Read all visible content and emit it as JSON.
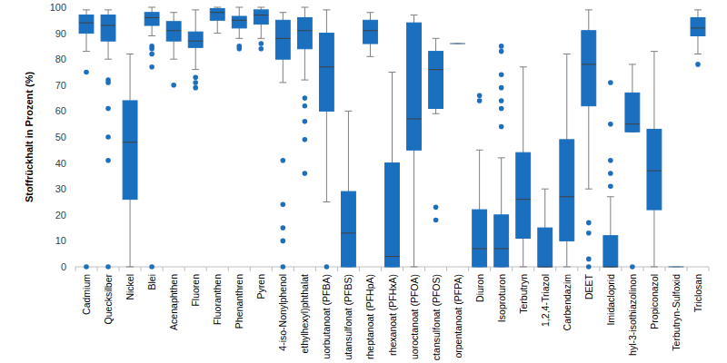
{
  "chart_data": {
    "type": "box",
    "ylabel": "Stoffrückhalt in Prozent (%)",
    "ylim": [
      0,
      100
    ],
    "yticks": [
      0,
      10,
      20,
      30,
      40,
      50,
      60,
      70,
      80,
      90,
      100
    ],
    "grid": false,
    "color": "#1a6fbf",
    "categories": [
      "Cadmium",
      "Quecksilber",
      "Nickel",
      "Blei",
      "Acenaphthen",
      "Fluoren",
      "Fluoranthen",
      "Phenanthren",
      "Pyren",
      "4-iso-Nonylphenol",
      "ethylhexyl)phthalat",
      "uorbutanoat (PFBA)",
      "utansulfonat (PFBS)",
      "rheptanoat (PFHpA)",
      "rhexanoat (PFHxA)",
      "uoroctanoat (PFOA)",
      "ctansulfonat (PFOS)",
      "orpentanoat (PFPA)",
      "Diuron",
      "Isoproturon",
      "Terbutryn",
      "1,2,4-Triazol",
      "Carbendazim",
      "DEET",
      "Imidacloprid",
      "hyl-3-isothiazolinon",
      "Propiconazol",
      "Terbutryn-Sulfoxid",
      "Triclosan"
    ],
    "whisker_low": [
      83,
      80,
      0,
      89,
      80,
      76,
      90,
      88,
      88,
      71,
      72,
      25,
      0,
      81,
      0,
      0,
      59,
      86,
      0,
      0,
      0,
      0,
      0,
      30,
      0,
      52,
      0,
      0,
      82
    ],
    "q1": [
      90,
      87,
      26,
      93,
      87,
      84.5,
      95,
      92,
      93.5,
      80,
      84,
      60,
      0,
      86,
      0,
      45,
      61,
      86,
      0,
      0,
      11,
      0,
      10,
      62,
      0,
      52,
      22,
      0,
      89
    ],
    "median": [
      94,
      93,
      48,
      96,
      91,
      87,
      98,
      95,
      97,
      88,
      91,
      77,
      13,
      91,
      4,
      57,
      76,
      86,
      7,
      7,
      26,
      0,
      27,
      78,
      0,
      55,
      37,
      0,
      92
    ],
    "q3": [
      97,
      97,
      64,
      98,
      94.5,
      90.5,
      99.5,
      96.5,
      99,
      95,
      96,
      90,
      29,
      95,
      40,
      94,
      83,
      86,
      22,
      20,
      44,
      15,
      49,
      91,
      12,
      67,
      53,
      0,
      96
    ],
    "whisker_high": [
      99,
      99,
      82,
      100,
      98,
      99,
      100,
      100,
      100,
      98,
      100,
      99,
      60,
      98,
      75,
      97,
      88,
      86,
      45,
      42,
      77,
      30,
      82,
      99,
      27,
      78,
      83,
      0,
      99
    ],
    "outliers": [
      [
        75,
        0
      ],
      [
        72,
        71,
        61,
        50,
        41,
        0
      ],
      [],
      [
        85,
        84,
        82,
        77,
        0
      ],
      [
        70
      ],
      [
        73,
        71,
        69
      ],
      [],
      [
        85,
        84
      ],
      [
        86,
        84
      ],
      [
        41,
        24,
        15,
        10,
        0
      ],
      [
        65,
        62,
        56,
        49,
        36
      ],
      [
        0
      ],
      [],
      [],
      [],
      [],
      [
        23,
        18
      ],
      [],
      [
        66,
        64
      ],
      [
        85,
        83,
        74,
        69,
        64,
        61,
        54
      ],
      [],
      [],
      [],
      [
        17,
        13,
        3,
        0
      ],
      [
        71,
        55,
        41,
        36,
        31
      ],
      [
        0
      ],
      [],
      [],
      [
        78
      ]
    ]
  }
}
